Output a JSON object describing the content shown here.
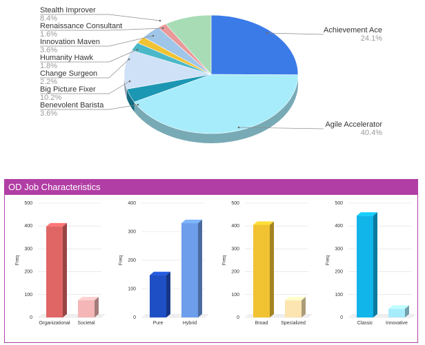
{
  "chart_data": [
    {
      "type": "pie",
      "title": "",
      "slices": [
        {
          "label": "Achievement Ace",
          "value": 24.1,
          "display": "24.1%",
          "color": "#3b7be8"
        },
        {
          "label": "Agile Accelerator",
          "value": 40.4,
          "display": "40.4%",
          "color": "#a7ecfb"
        },
        {
          "label": "Benevolent Barista",
          "value": 3.6,
          "display": "3.6%",
          "color": "#1c97b3"
        },
        {
          "label": "Big Picture Fixer",
          "value": 10.2,
          "display": "10.2%",
          "color": "#cfe1f6"
        },
        {
          "label": "Change Surgeon",
          "value": 2.2,
          "display": "2.2%",
          "color": "#4ab8c8"
        },
        {
          "label": "Humanity Hawk",
          "value": 1.8,
          "display": "1.8%",
          "color": "#f1c232"
        },
        {
          "label": "Innovation Maven",
          "value": 3.6,
          "display": "3.6%",
          "color": "#9fc5e8"
        },
        {
          "label": "Renaissance Consultant",
          "value": 1.6,
          "display": "1.6%",
          "color": "#ea9999"
        },
        {
          "label": "Stealth Improver",
          "value": 8.4,
          "display": "8.4%",
          "color": "#a8dcb5"
        }
      ]
    },
    {
      "type": "bar",
      "title": "",
      "ylabel": "Freq",
      "ylim": [
        0,
        500
      ],
      "yticks": [
        0,
        100,
        200,
        300,
        400,
        500
      ],
      "categories": [
        "Organizational",
        "Societal"
      ],
      "values": [
        398,
        75
      ],
      "colors": [
        "#e06666",
        "#f4b6b6"
      ]
    },
    {
      "type": "bar",
      "title": "",
      "ylabel": "Freq",
      "ylim": [
        0,
        400
      ],
      "yticks": [
        0,
        100,
        200,
        300,
        400
      ],
      "categories": [
        "Pure",
        "Hybrid"
      ],
      "values": [
        148,
        330
      ],
      "colors": [
        "#1f4fc4",
        "#6d9eeb"
      ]
    },
    {
      "type": "bar",
      "title": "",
      "ylabel": "Freq",
      "ylim": [
        0,
        500
      ],
      "yticks": [
        0,
        100,
        200,
        300,
        400,
        500
      ],
      "categories": [
        "Broad",
        "Specialized"
      ],
      "values": [
        405,
        75
      ],
      "colors": [
        "#f1c232",
        "#fce5b0"
      ]
    },
    {
      "type": "bar",
      "title": "",
      "ylabel": "Freq",
      "ylim": [
        0,
        500
      ],
      "yticks": [
        0,
        100,
        200,
        300,
        400,
        500
      ],
      "categories": [
        "Classic",
        "Innovative"
      ],
      "values": [
        445,
        38
      ],
      "colors": [
        "#12b5ea",
        "#a7ecfb"
      ]
    }
  ],
  "panel": {
    "title": "OD Job Characteristics"
  }
}
